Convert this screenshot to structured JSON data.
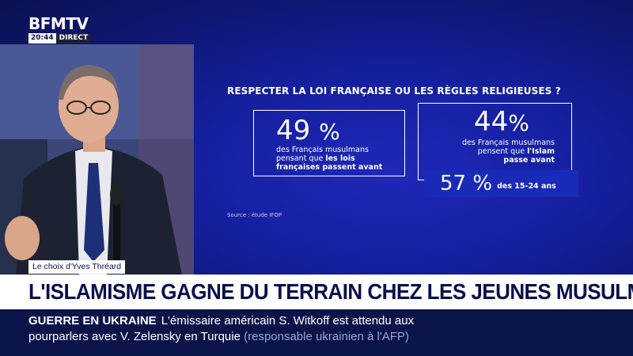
{
  "channel": {
    "logo": "BFMTV",
    "time": "20:44",
    "live": "DIRECT"
  },
  "infographic": {
    "title": "RESPECTER LA LOI FRANÇAISE OU LES RÈGLES RELIGIEUSES ?",
    "left": {
      "value": "49",
      "unit": "%",
      "line1": "des Français musulmans",
      "line2_plain": "pensant que ",
      "line2_bold": "les lois",
      "line3_bold": "françaises passent avant"
    },
    "right": {
      "value": "44",
      "unit": "%",
      "line1": "des Français musulmans",
      "line2_plain": "pensent que ",
      "line2_bold": "l'Islam",
      "line3_bold": "passe avant"
    },
    "sub": {
      "value": "57",
      "unit": "%",
      "label": "des 15-24 ans"
    },
    "source": "Source : étude IFOP"
  },
  "lower_third": {
    "name_tag": "Le choix d'Yves Thréard",
    "headline": "L'ISLAMISME GAGNE DU TERRAIN CHEZ LES JEUNES MUSULMANS"
  },
  "ticker": {
    "tag": "GUERRE EN UKRAINE",
    "line1": "L'émissaire américain S. Witkoff est attendu aux",
    "line2": "pourparlers avec V. Zelensky en Turquie",
    "note": "(responsable ukrainien à l'AFP)"
  },
  "colors": {
    "background": "#1520a0",
    "headline_text": "#0a0f4c",
    "ticker_bg": "#0a1448"
  }
}
